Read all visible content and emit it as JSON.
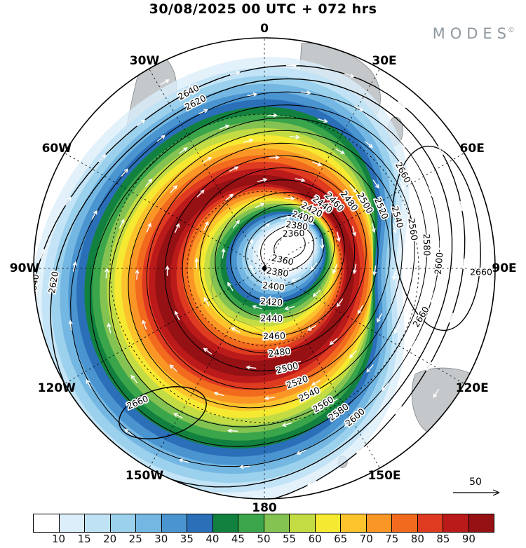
{
  "header": {
    "title": "30/08/2025  00 UTC  + 072 hrs",
    "brand": "MODES",
    "brand_mark": "©"
  },
  "chart_data": {
    "type": "heatmap",
    "subtype": "polar-stereographic-weather-map",
    "hemisphere": "southern",
    "title": "30/08/2025 00 UTC + 072 hrs",
    "longitude_ring_labels": [
      "0",
      "30E",
      "60E",
      "90E",
      "120E",
      "150E",
      "180",
      "150W",
      "120W",
      "90W",
      "60W",
      "30W"
    ],
    "shading": {
      "variable": "wind-speed",
      "levels": [
        10,
        15,
        20,
        25,
        30,
        35,
        40,
        45,
        50,
        55,
        60,
        65,
        70,
        75,
        80,
        85,
        90
      ],
      "colors": [
        "#ffffff",
        "#dbeef9",
        "#c0e2f5",
        "#9bd1ec",
        "#74b7e2",
        "#4a94d0",
        "#2a6fb8",
        "#12813f",
        "#3aa54a",
        "#84c351",
        "#c3dc44",
        "#f5e932",
        "#fcc32c",
        "#fa9626",
        "#f26a1e",
        "#df3b21",
        "#bb1a1b",
        "#951114"
      ]
    },
    "contours": {
      "variable": "geopotential-height",
      "interval": 20,
      "ring_levels": [
        2360,
        2380,
        2400,
        2420,
        2440,
        2460,
        2480,
        2500,
        2520,
        2540,
        2560,
        2580,
        2600,
        2620,
        2640
      ],
      "outer_closed_level": 2660
    },
    "vector_reference": 50
  }
}
